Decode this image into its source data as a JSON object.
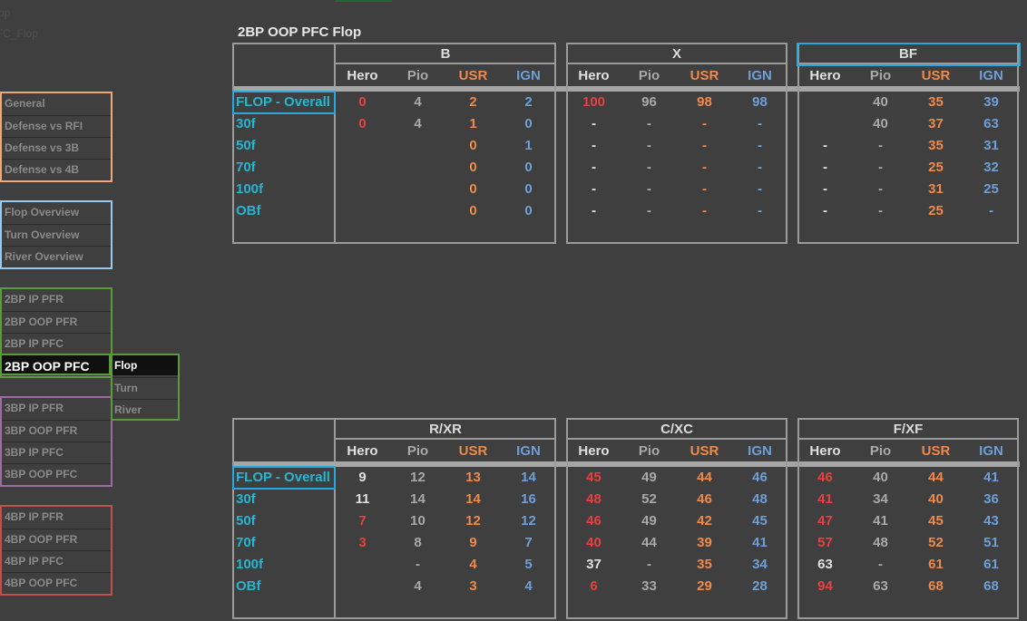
{
  "faint_labels": [
    "Flop",
    "PFC_Flop"
  ],
  "sheet_title": "2BP OOP PFC  Flop",
  "colors": {
    "hero": "#e0e0e0",
    "hero_red": "#e84040",
    "pio": "#a9a9a9",
    "usr": "#f08a4b",
    "ign": "#6f9fd8",
    "row_label": "#27b6d1",
    "selection": "#27a8de",
    "nav_orange": "#f0a878",
    "nav_blue": "#9cc8ec",
    "nav_green": "#5b9b3d",
    "nav_purple": "#9a6fa0",
    "nav_red": "#c0504d"
  },
  "nav": {
    "general": [
      "General",
      "Defense vs RFI",
      "Defense vs 3B",
      "Defense vs 4B"
    ],
    "overview": [
      "Flop Overview",
      "Turn Overview",
      "River Overview"
    ],
    "bp2": [
      "2BP IP PFR",
      "2BP OOP PFR",
      "2BP IP PFC",
      "2BP OOP PFC"
    ],
    "bp2_sub": [
      "Flop",
      "Turn",
      "River"
    ],
    "bp3": [
      "3BP IP PFR",
      "3BP OOP PFR",
      "3BP IP PFC",
      "3BP OOP PFC"
    ],
    "bp4": [
      "4BP IP PFR",
      "4BP OOP PFR",
      "4BP IP PFC",
      "4BP OOP PFC"
    ]
  },
  "col_headers": [
    "Hero",
    "Pio",
    "USR",
    "IGN"
  ],
  "row_labels": [
    "FLOP - Overall",
    "30f",
    "50f",
    "70f",
    "100f",
    "OBf"
  ],
  "top_groups": [
    {
      "name": "B",
      "rows": [
        [
          {
            "v": "0",
            "c": "r"
          },
          {
            "v": "4",
            "c": "p"
          },
          {
            "v": "2",
            "c": "u"
          },
          {
            "v": "2",
            "c": "i"
          }
        ],
        [
          {
            "v": "0",
            "c": "r"
          },
          {
            "v": "4",
            "c": "p"
          },
          {
            "v": "1",
            "c": "u"
          },
          {
            "v": "0",
            "c": "i"
          }
        ],
        [
          {
            "v": "",
            "c": "h"
          },
          {
            "v": "",
            "c": "p"
          },
          {
            "v": "0",
            "c": "u"
          },
          {
            "v": "1",
            "c": "i"
          }
        ],
        [
          {
            "v": "",
            "c": "h"
          },
          {
            "v": "",
            "c": "p"
          },
          {
            "v": "0",
            "c": "u"
          },
          {
            "v": "0",
            "c": "i"
          }
        ],
        [
          {
            "v": "",
            "c": "h"
          },
          {
            "v": "",
            "c": "p"
          },
          {
            "v": "0",
            "c": "u"
          },
          {
            "v": "0",
            "c": "i"
          }
        ],
        [
          {
            "v": "",
            "c": "h"
          },
          {
            "v": "",
            "c": "p"
          },
          {
            "v": "0",
            "c": "u"
          },
          {
            "v": "0",
            "c": "i"
          }
        ]
      ]
    },
    {
      "name": "X",
      "rows": [
        [
          {
            "v": "100",
            "c": "r"
          },
          {
            "v": "96",
            "c": "p"
          },
          {
            "v": "98",
            "c": "u"
          },
          {
            "v": "98",
            "c": "i"
          }
        ],
        [
          {
            "v": "-",
            "c": "h"
          },
          {
            "v": "-",
            "c": "p"
          },
          {
            "v": "-",
            "c": "u"
          },
          {
            "v": "-",
            "c": "i"
          }
        ],
        [
          {
            "v": "-",
            "c": "h"
          },
          {
            "v": "-",
            "c": "p"
          },
          {
            "v": "-",
            "c": "u"
          },
          {
            "v": "-",
            "c": "i"
          }
        ],
        [
          {
            "v": "-",
            "c": "h"
          },
          {
            "v": "-",
            "c": "p"
          },
          {
            "v": "-",
            "c": "u"
          },
          {
            "v": "-",
            "c": "i"
          }
        ],
        [
          {
            "v": "-",
            "c": "h"
          },
          {
            "v": "-",
            "c": "p"
          },
          {
            "v": "-",
            "c": "u"
          },
          {
            "v": "-",
            "c": "i"
          }
        ],
        [
          {
            "v": "-",
            "c": "h"
          },
          {
            "v": "-",
            "c": "p"
          },
          {
            "v": "-",
            "c": "u"
          },
          {
            "v": "-",
            "c": "i"
          }
        ]
      ]
    },
    {
      "name": "BF",
      "rows": [
        [
          {
            "v": "",
            "c": "h"
          },
          {
            "v": "40",
            "c": "p"
          },
          {
            "v": "35",
            "c": "u"
          },
          {
            "v": "39",
            "c": "i"
          }
        ],
        [
          {
            "v": "",
            "c": "h"
          },
          {
            "v": "40",
            "c": "p"
          },
          {
            "v": "37",
            "c": "u"
          },
          {
            "v": "63",
            "c": "i"
          }
        ],
        [
          {
            "v": "-",
            "c": "h"
          },
          {
            "v": "-",
            "c": "p"
          },
          {
            "v": "35",
            "c": "u"
          },
          {
            "v": "31",
            "c": "i"
          }
        ],
        [
          {
            "v": "-",
            "c": "h"
          },
          {
            "v": "-",
            "c": "p"
          },
          {
            "v": "25",
            "c": "u"
          },
          {
            "v": "32",
            "c": "i"
          }
        ],
        [
          {
            "v": "-",
            "c": "h"
          },
          {
            "v": "-",
            "c": "p"
          },
          {
            "v": "31",
            "c": "u"
          },
          {
            "v": "25",
            "c": "i"
          }
        ],
        [
          {
            "v": "-",
            "c": "h"
          },
          {
            "v": "-",
            "c": "p"
          },
          {
            "v": "25",
            "c": "u"
          },
          {
            "v": "-",
            "c": "i"
          }
        ]
      ]
    }
  ],
  "bottom_groups": [
    {
      "name": "R/XR",
      "rows": [
        [
          {
            "v": "9",
            "c": "h"
          },
          {
            "v": "12",
            "c": "p"
          },
          {
            "v": "13",
            "c": "u"
          },
          {
            "v": "14",
            "c": "i"
          }
        ],
        [
          {
            "v": "11",
            "c": "h"
          },
          {
            "v": "14",
            "c": "p"
          },
          {
            "v": "14",
            "c": "u"
          },
          {
            "v": "16",
            "c": "i"
          }
        ],
        [
          {
            "v": "7",
            "c": "r"
          },
          {
            "v": "10",
            "c": "p"
          },
          {
            "v": "12",
            "c": "u"
          },
          {
            "v": "12",
            "c": "i"
          }
        ],
        [
          {
            "v": "3",
            "c": "r"
          },
          {
            "v": "8",
            "c": "p"
          },
          {
            "v": "9",
            "c": "u"
          },
          {
            "v": "7",
            "c": "i"
          }
        ],
        [
          {
            "v": "",
            "c": "h"
          },
          {
            "v": "-",
            "c": "p"
          },
          {
            "v": "4",
            "c": "u"
          },
          {
            "v": "5",
            "c": "i"
          }
        ],
        [
          {
            "v": "",
            "c": "h"
          },
          {
            "v": "4",
            "c": "p"
          },
          {
            "v": "3",
            "c": "u"
          },
          {
            "v": "4",
            "c": "i"
          }
        ]
      ]
    },
    {
      "name": "C/XC",
      "rows": [
        [
          {
            "v": "45",
            "c": "r"
          },
          {
            "v": "49",
            "c": "p"
          },
          {
            "v": "44",
            "c": "u"
          },
          {
            "v": "46",
            "c": "i"
          }
        ],
        [
          {
            "v": "48",
            "c": "r"
          },
          {
            "v": "52",
            "c": "p"
          },
          {
            "v": "46",
            "c": "u"
          },
          {
            "v": "48",
            "c": "i"
          }
        ],
        [
          {
            "v": "46",
            "c": "r"
          },
          {
            "v": "49",
            "c": "p"
          },
          {
            "v": "42",
            "c": "u"
          },
          {
            "v": "45",
            "c": "i"
          }
        ],
        [
          {
            "v": "40",
            "c": "r"
          },
          {
            "v": "44",
            "c": "p"
          },
          {
            "v": "39",
            "c": "u"
          },
          {
            "v": "41",
            "c": "i"
          }
        ],
        [
          {
            "v": "37",
            "c": "h"
          },
          {
            "v": "-",
            "c": "p"
          },
          {
            "v": "35",
            "c": "u"
          },
          {
            "v": "34",
            "c": "i"
          }
        ],
        [
          {
            "v": "6",
            "c": "r"
          },
          {
            "v": "33",
            "c": "p"
          },
          {
            "v": "29",
            "c": "u"
          },
          {
            "v": "28",
            "c": "i"
          }
        ]
      ]
    },
    {
      "name": "F/XF",
      "rows": [
        [
          {
            "v": "46",
            "c": "r"
          },
          {
            "v": "40",
            "c": "p"
          },
          {
            "v": "44",
            "c": "u"
          },
          {
            "v": "41",
            "c": "i"
          }
        ],
        [
          {
            "v": "41",
            "c": "r"
          },
          {
            "v": "34",
            "c": "p"
          },
          {
            "v": "40",
            "c": "u"
          },
          {
            "v": "36",
            "c": "i"
          }
        ],
        [
          {
            "v": "47",
            "c": "r"
          },
          {
            "v": "41",
            "c": "p"
          },
          {
            "v": "45",
            "c": "u"
          },
          {
            "v": "43",
            "c": "i"
          }
        ],
        [
          {
            "v": "57",
            "c": "r"
          },
          {
            "v": "48",
            "c": "p"
          },
          {
            "v": "52",
            "c": "u"
          },
          {
            "v": "51",
            "c": "i"
          }
        ],
        [
          {
            "v": "63",
            "c": "h"
          },
          {
            "v": "-",
            "c": "p"
          },
          {
            "v": "61",
            "c": "u"
          },
          {
            "v": "61",
            "c": "i"
          }
        ],
        [
          {
            "v": "94",
            "c": "r"
          },
          {
            "v": "63",
            "c": "p"
          },
          {
            "v": "68",
            "c": "u"
          },
          {
            "v": "68",
            "c": "i"
          }
        ]
      ]
    }
  ]
}
